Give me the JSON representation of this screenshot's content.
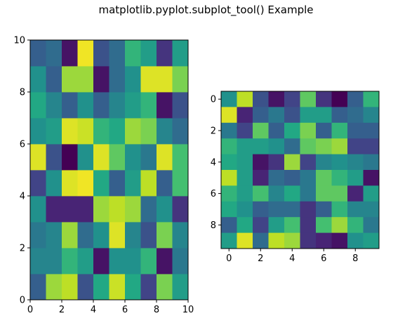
{
  "figure": {
    "title": "matplotlib.pyplot.subplot_tool() Example"
  },
  "chart_data": [
    {
      "type": "heatmap",
      "name": "pcolor-panel",
      "colormap": "viridis",
      "xlim": [
        0,
        10
      ],
      "ylim": [
        0,
        10
      ],
      "origin": "bottom",
      "xticks": [
        "0",
        "2",
        "4",
        "6",
        "8",
        "10"
      ],
      "yticks": [
        "0",
        "2",
        "4",
        "6",
        "8",
        "10"
      ],
      "grid": false,
      "values": [
        [
          0.3,
          0.85,
          0.9,
          0.25,
          0.6,
          0.92,
          0.6,
          0.2,
          0.8,
          0.55
        ],
        [
          0.45,
          0.45,
          0.65,
          0.55,
          0.05,
          0.5,
          0.5,
          0.65,
          0.05,
          0.4
        ],
        [
          0.4,
          0.45,
          0.85,
          0.35,
          0.5,
          0.95,
          0.45,
          0.25,
          0.8,
          0.45
        ],
        [
          0.5,
          0.1,
          0.1,
          0.1,
          0.85,
          0.9,
          0.85,
          0.35,
          0.5,
          0.15
        ],
        [
          0.2,
          0.5,
          0.95,
          0.98,
          0.6,
          0.3,
          0.55,
          0.9,
          0.3,
          0.7
        ],
        [
          0.95,
          0.25,
          0.0,
          0.5,
          0.95,
          0.75,
          0.5,
          0.4,
          0.95,
          0.7
        ],
        [
          0.5,
          0.55,
          0.95,
          0.92,
          0.65,
          0.6,
          0.85,
          0.8,
          0.45,
          0.35
        ],
        [
          0.6,
          0.45,
          0.3,
          0.5,
          0.3,
          0.45,
          0.55,
          0.65,
          0.05,
          0.25
        ],
        [
          0.5,
          0.3,
          0.85,
          0.85,
          0.05,
          0.35,
          0.5,
          0.95,
          0.95,
          0.8
        ],
        [
          0.3,
          0.35,
          0.05,
          0.98,
          0.25,
          0.35,
          0.65,
          0.55,
          0.15,
          0.55
        ]
      ]
    },
    {
      "type": "heatmap",
      "name": "imshow-panel",
      "colormap": "viridis",
      "xlim": [
        -0.5,
        9.5
      ],
      "ylim": [
        9.5,
        -0.5
      ],
      "origin": "top",
      "xticks": [
        "0",
        "2",
        "4",
        "6",
        "8"
      ],
      "yticks": [
        "0",
        "2",
        "4",
        "6",
        "8"
      ],
      "grid": false,
      "values": [
        [
          0.5,
          0.9,
          0.25,
          0.05,
          0.2,
          0.75,
          0.15,
          0.0,
          0.3,
          0.65
        ],
        [
          0.95,
          0.1,
          0.3,
          0.4,
          0.25,
          0.55,
          0.55,
          0.3,
          0.35,
          0.45
        ],
        [
          0.4,
          0.2,
          0.75,
          0.3,
          0.6,
          0.8,
          0.3,
          0.65,
          0.3,
          0.3
        ],
        [
          0.65,
          0.55,
          0.55,
          0.5,
          0.35,
          0.75,
          0.8,
          0.85,
          0.2,
          0.2
        ],
        [
          0.6,
          0.55,
          0.05,
          0.15,
          0.85,
          0.2,
          0.45,
          0.5,
          0.45,
          0.4
        ],
        [
          0.9,
          0.55,
          0.1,
          0.35,
          0.3,
          0.4,
          0.75,
          0.65,
          0.55,
          0.05
        ],
        [
          0.65,
          0.55,
          0.7,
          0.45,
          0.6,
          0.4,
          0.75,
          0.75,
          0.1,
          0.55
        ],
        [
          0.6,
          0.5,
          0.3,
          0.35,
          0.35,
          0.15,
          0.3,
          0.65,
          0.45,
          0.45
        ],
        [
          0.3,
          0.6,
          0.2,
          0.55,
          0.7,
          0.15,
          0.7,
          0.85,
          0.65,
          0.4
        ],
        [
          0.55,
          0.95,
          0.35,
          0.9,
          0.85,
          0.15,
          0.1,
          0.05,
          0.5,
          0.55
        ]
      ]
    }
  ]
}
